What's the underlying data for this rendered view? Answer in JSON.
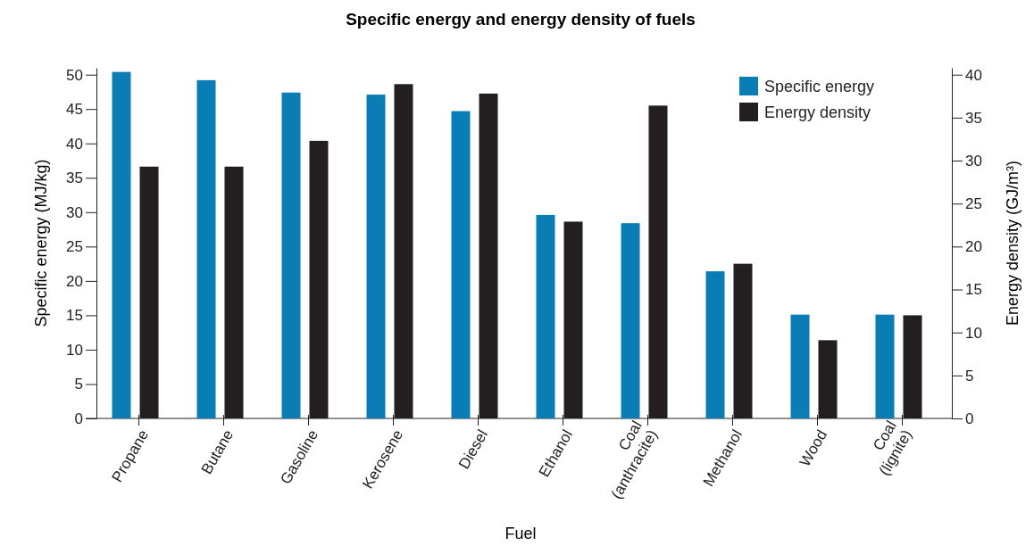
{
  "chart_data": {
    "type": "bar",
    "title": "Specific energy and energy density of fuels",
    "xlabel": "Fuel",
    "ylabel": "Specific energy (MJ/kg)",
    "y2label": "Energy density (GJ/m³)",
    "categories": [
      "Propane",
      "Butane",
      "Gasoline",
      "Kerosene",
      "Diesel",
      "Ethanol",
      "Coal (anthracite)",
      "Methanol",
      "Wood",
      "Coal (lignite)"
    ],
    "series": [
      {
        "name": "Specific energy",
        "color": "#0a7db5",
        "values": [
          50.4,
          49.2,
          47.4,
          47.1,
          44.7,
          29.6,
          28.4,
          21.4,
          15.1,
          15.1
        ]
      },
      {
        "name": "Energy density",
        "color": "#231f20",
        "axis": "y2",
        "values": [
          29.3,
          29.3,
          32.3,
          38.9,
          37.8,
          22.9,
          36.4,
          18.0,
          9.1,
          12.0
        ]
      }
    ],
    "ylim": [
      0,
      51
    ],
    "yticks": [
      0,
      5,
      10,
      15,
      20,
      25,
      30,
      35,
      40,
      45,
      50
    ],
    "y2lim": [
      0,
      40.8
    ],
    "y2ticks": [
      0,
      5,
      10,
      15,
      20,
      25,
      30,
      35,
      40
    ],
    "legend": "top right",
    "grid": false
  }
}
